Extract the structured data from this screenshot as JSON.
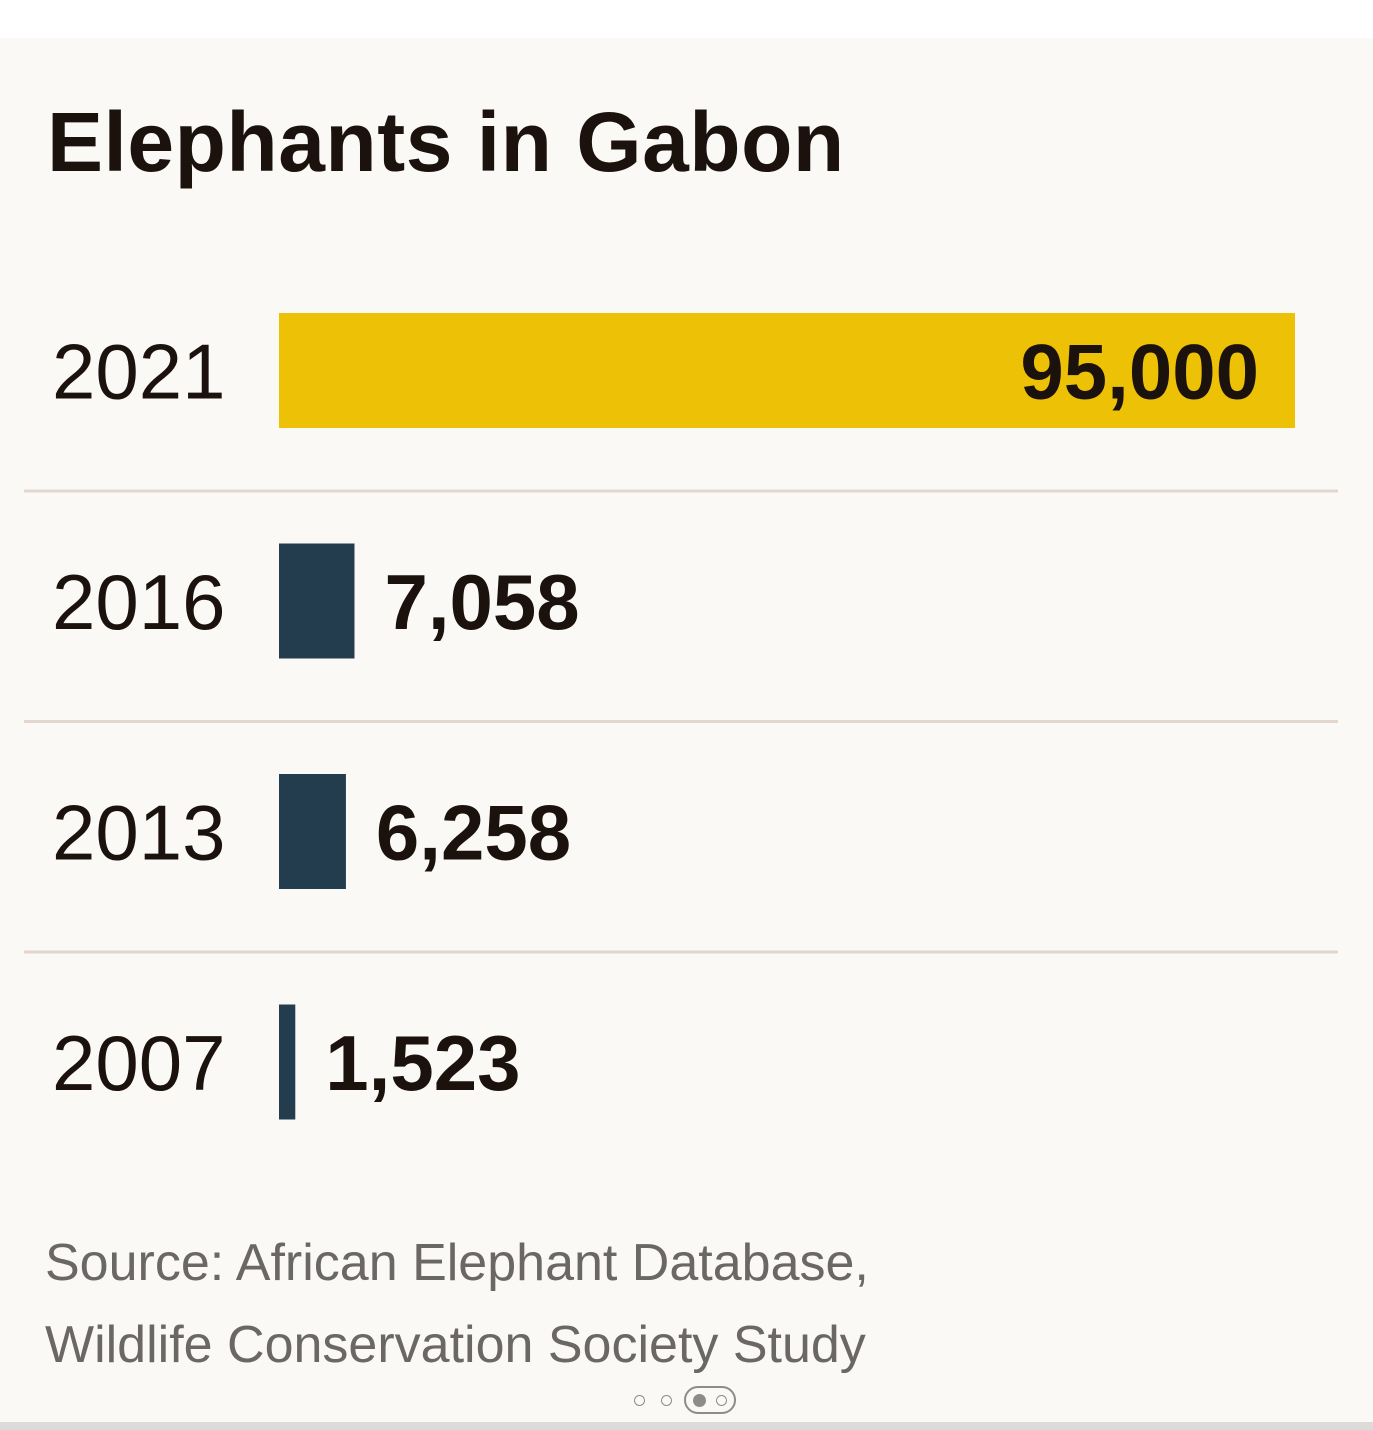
{
  "chart_data": {
    "type": "bar",
    "orientation": "horizontal",
    "title": "Elephants in Gabon",
    "categories": [
      "2021",
      "2016",
      "2013",
      "2007"
    ],
    "values": [
      95000,
      7058,
      6258,
      1523
    ],
    "value_labels": [
      "95,000",
      "7,058",
      "6,258",
      "1,523"
    ],
    "colors": [
      "#edc105",
      "#243d4e",
      "#243d4e",
      "#243d4e"
    ],
    "value_label_placement": [
      "inside-end",
      "outside",
      "outside",
      "outside"
    ],
    "grid": false,
    "legend": "none"
  },
  "source": {
    "line1": "Source: African Elephant Database,",
    "line2": "Wildlife Conservation Society Study"
  },
  "pager": {
    "total": 4,
    "current": 3
  },
  "colors": {
    "highlight": "#edc105",
    "bar": "#243d4e",
    "text": "#1b120d",
    "source_text": "#6b6765",
    "background": "#faf9f6",
    "divider": "#e3d6cc"
  }
}
